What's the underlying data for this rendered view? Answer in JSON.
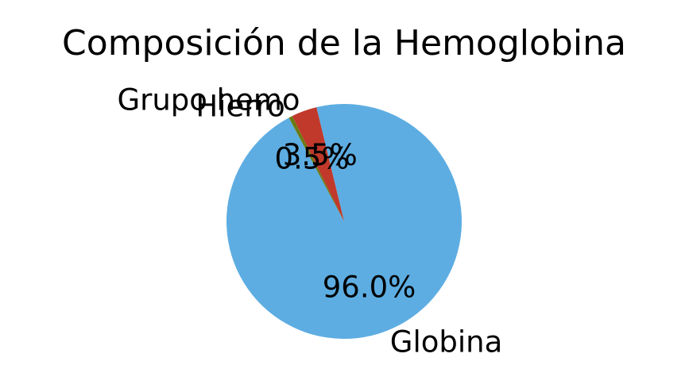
{
  "chart_data": {
    "type": "pie",
    "title": "Composición de la Hemoglobina",
    "slices": [
      {
        "label": "Globina",
        "value": 96.0,
        "pct_label": "96.0%",
        "color": "#5DADE2"
      },
      {
        "label": "Grupo hemo",
        "value": 3.5,
        "pct_label": "3.5%",
        "color": "#C0392B"
      },
      {
        "label": "Hierro",
        "value": 0.5,
        "pct_label": "0.5%",
        "color": "#6B7A12"
      }
    ],
    "start_angle_deg": 118,
    "direction": "counterclockwise",
    "legend": "none"
  }
}
